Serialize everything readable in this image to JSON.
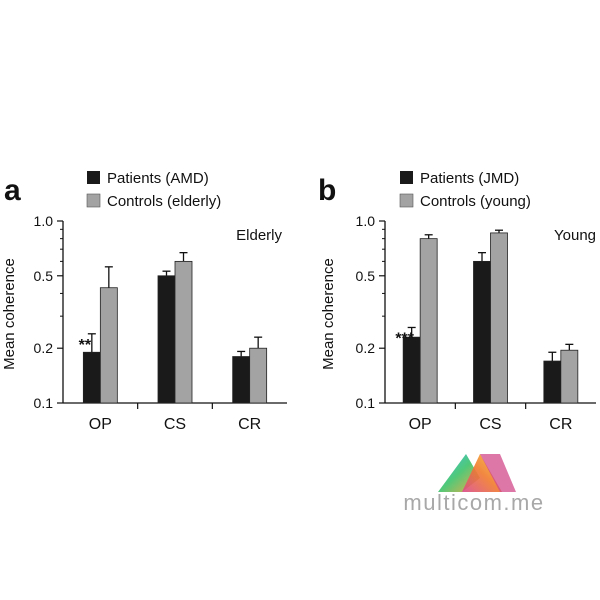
{
  "chart_data": [
    {
      "type": "bar",
      "panel_label": "a",
      "group_label": "Elderly",
      "ylabel": "Mean coherence",
      "yscale": "log",
      "ylim": [
        0.1,
        1.0
      ],
      "yticks": [
        1.0,
        0.5,
        0.2,
        0.1
      ],
      "ytick_labels": [
        "1.0",
        "0.5",
        "0.2",
        "0.1"
      ],
      "categories": [
        "OP",
        "CS",
        "CR"
      ],
      "legend_position": "top-left",
      "series": [
        {
          "name": "Patients (AMD)",
          "color": "#1a1a1a",
          "values": [
            0.19,
            0.5,
            0.18
          ],
          "errors": [
            0.05,
            0.03,
            0.012
          ]
        },
        {
          "name": "Controls (elderly)",
          "color": "#a3a3a3",
          "values": [
            0.43,
            0.6,
            0.2
          ],
          "errors": [
            0.13,
            0.07,
            0.03
          ]
        }
      ],
      "annotations": [
        {
          "text": "**",
          "category": "OP",
          "series": 0
        }
      ]
    },
    {
      "type": "bar",
      "panel_label": "b",
      "group_label": "Young",
      "ylabel": "Mean coherence",
      "yscale": "log",
      "ylim": [
        0.1,
        1.0
      ],
      "yticks": [
        1.0,
        0.5,
        0.2,
        0.1
      ],
      "ytick_labels": [
        "1.0",
        "0.5",
        "0.2",
        "0.1"
      ],
      "categories": [
        "OP",
        "CS",
        "CR"
      ],
      "legend_position": "top-left",
      "series": [
        {
          "name": "Patients (JMD)",
          "color": "#1a1a1a",
          "values": [
            0.23,
            0.6,
            0.17
          ],
          "errors": [
            0.03,
            0.07,
            0.02
          ]
        },
        {
          "name": "Controls (young)",
          "color": "#a3a3a3",
          "values": [
            0.8,
            0.86,
            0.195
          ],
          "errors": [
            0.04,
            0.03,
            0.015
          ]
        }
      ],
      "annotations": [
        {
          "text": "***",
          "category": "OP",
          "series": 0
        }
      ]
    }
  ],
  "watermark": {
    "text": "multicom.me",
    "logo": "multicom-logo-icon"
  }
}
